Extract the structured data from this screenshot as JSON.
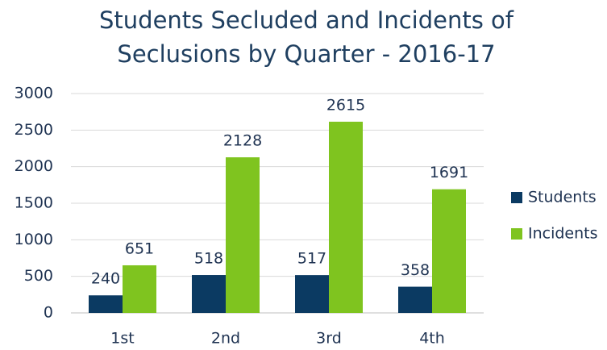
{
  "chart_data": {
    "type": "bar",
    "title": "Students Secluded and Incidents of Seclusions by Quarter - 2016-17",
    "categories": [
      "1st",
      "2nd",
      "3rd",
      "4th"
    ],
    "series": [
      {
        "name": "Students",
        "color": "#0b3a62",
        "values": [
          240,
          518,
          517,
          358
        ]
      },
      {
        "name": "Incidents",
        "color": "#7fc41f",
        "values": [
          651,
          2128,
          2615,
          1691
        ]
      }
    ],
    "ylim": [
      0,
      3000
    ],
    "yticks": [
      0,
      500,
      1000,
      1500,
      2000,
      2500,
      3000
    ],
    "grid": true,
    "legend": "right"
  }
}
